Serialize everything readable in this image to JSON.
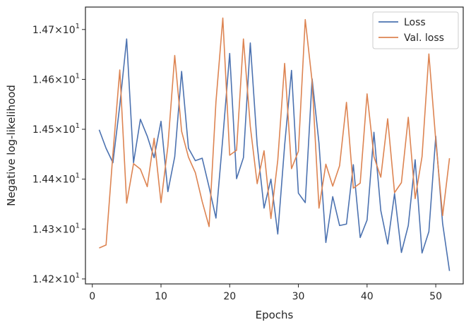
{
  "chart_data": {
    "type": "line",
    "xlabel": "Epochs",
    "ylabel": "Negative log-likelihood",
    "xlim": [
      -1,
      54
    ],
    "ylim": [
      14.19,
      14.745
    ],
    "x_ticks": [
      0,
      10,
      20,
      30,
      40,
      50
    ],
    "y_ticks": [
      {
        "value": 14.2,
        "mantissa": "1.42",
        "base": "10",
        "exp": "1"
      },
      {
        "value": 14.3,
        "mantissa": "1.43",
        "base": "10",
        "exp": "1"
      },
      {
        "value": 14.4,
        "mantissa": "1.44",
        "base": "10",
        "exp": "1"
      },
      {
        "value": 14.5,
        "mantissa": "1.45",
        "base": "10",
        "exp": "1"
      },
      {
        "value": 14.6,
        "mantissa": "1.46",
        "base": "10",
        "exp": "1"
      },
      {
        "value": 14.7,
        "mantissa": "1.47",
        "base": "10",
        "exp": "1"
      }
    ],
    "grid": false,
    "legend_position": "top-right",
    "x": [
      1,
      2,
      3,
      4,
      5,
      6,
      7,
      8,
      9,
      10,
      11,
      12,
      13,
      14,
      15,
      16,
      17,
      18,
      19,
      20,
      21,
      22,
      23,
      24,
      25,
      26,
      27,
      28,
      29,
      30,
      31,
      32,
      33,
      34,
      35,
      36,
      37,
      38,
      39,
      40,
      41,
      42,
      43,
      44,
      45,
      46,
      47,
      48,
      49,
      50,
      51,
      52
    ],
    "series": [
      {
        "name": "Loss",
        "color": "#4c72b0",
        "values": [
          14.499,
          14.462,
          14.433,
          14.548,
          14.681,
          14.433,
          14.52,
          14.486,
          14.443,
          14.516,
          14.375,
          14.445,
          14.616,
          14.462,
          14.437,
          14.442,
          14.384,
          14.322,
          14.483,
          14.652,
          14.401,
          14.443,
          14.673,
          14.469,
          14.342,
          14.4,
          14.29,
          14.468,
          14.618,
          14.372,
          14.353,
          14.601,
          14.472,
          14.273,
          14.365,
          14.307,
          14.31,
          14.429,
          14.283,
          14.318,
          14.494,
          14.337,
          14.27,
          14.371,
          14.253,
          14.307,
          14.439,
          14.252,
          14.295,
          14.486,
          14.311,
          14.216
        ]
      },
      {
        "name": "Val. loss",
        "color": "#dd8452",
        "values": [
          14.262,
          14.268,
          14.451,
          14.619,
          14.352,
          14.431,
          14.42,
          14.385,
          14.482,
          14.353,
          14.466,
          14.648,
          14.496,
          14.444,
          14.413,
          14.355,
          14.305,
          14.555,
          14.723,
          14.448,
          14.458,
          14.681,
          14.506,
          14.391,
          14.457,
          14.321,
          14.438,
          14.632,
          14.421,
          14.456,
          14.72,
          14.596,
          14.342,
          14.43,
          14.386,
          14.427,
          14.554,
          14.382,
          14.392,
          14.571,
          14.445,
          14.404,
          14.521,
          14.373,
          14.393,
          14.524,
          14.361,
          14.445,
          14.651,
          14.478,
          14.327,
          14.442
        ]
      }
    ]
  }
}
